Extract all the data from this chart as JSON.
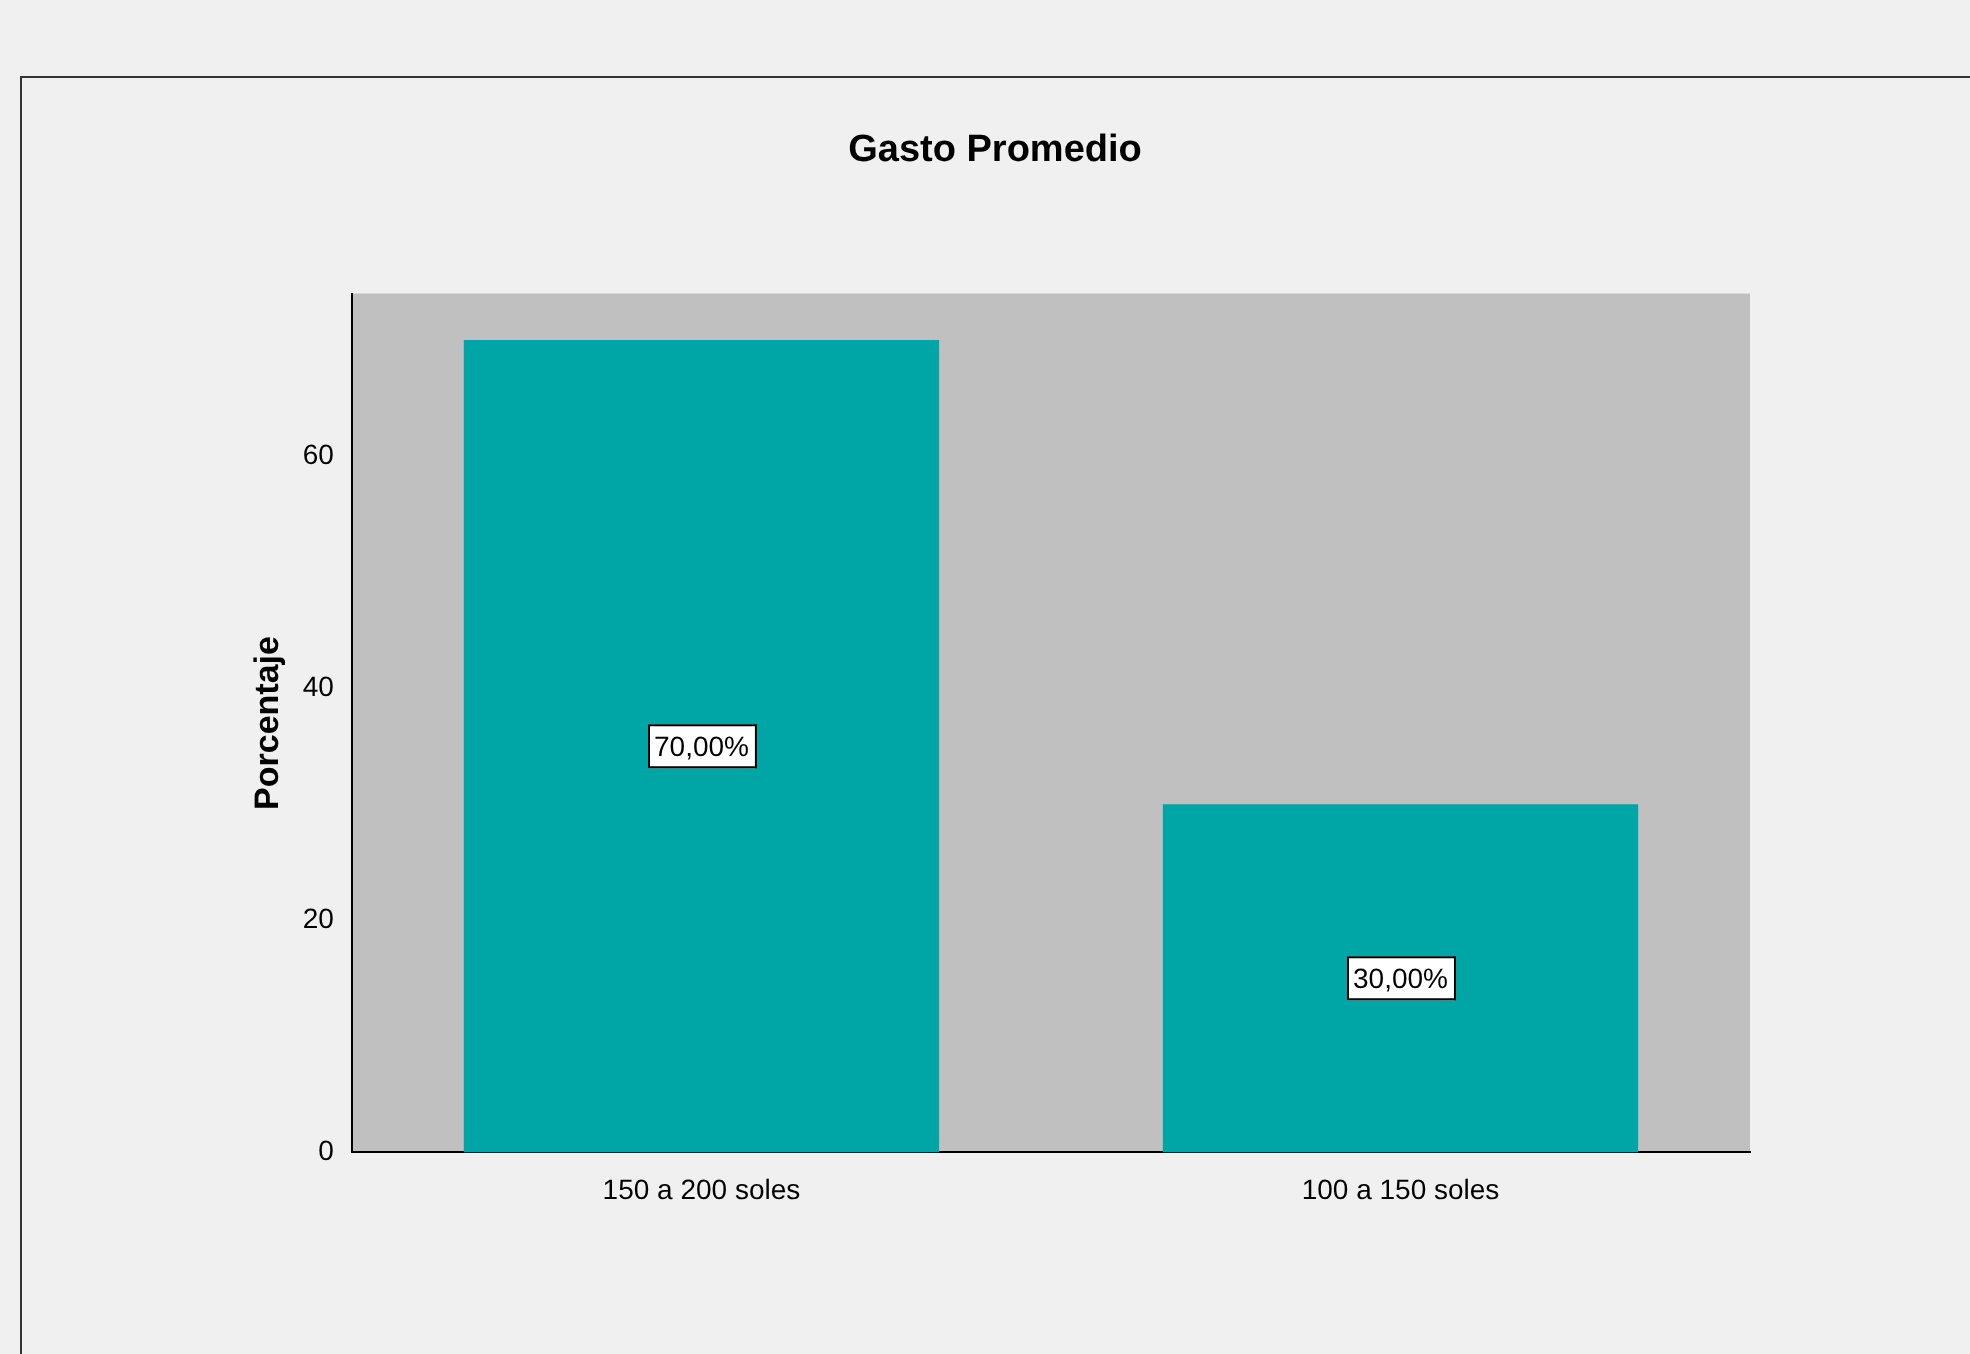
{
  "chart_data": {
    "type": "bar",
    "title": "Gasto Promedio",
    "ylabel": "Porcentaje",
    "categories": [
      "150 a 200 soles",
      "100 a 150 soles"
    ],
    "values": [
      70,
      30
    ],
    "color": "#00a6a6",
    "value_labels": [
      "70,00%",
      "30,00%"
    ],
    "ylim": [
      0,
      74
    ],
    "yticks": [
      0,
      20,
      40,
      60
    ],
    "grid": false,
    "legend": false
  }
}
